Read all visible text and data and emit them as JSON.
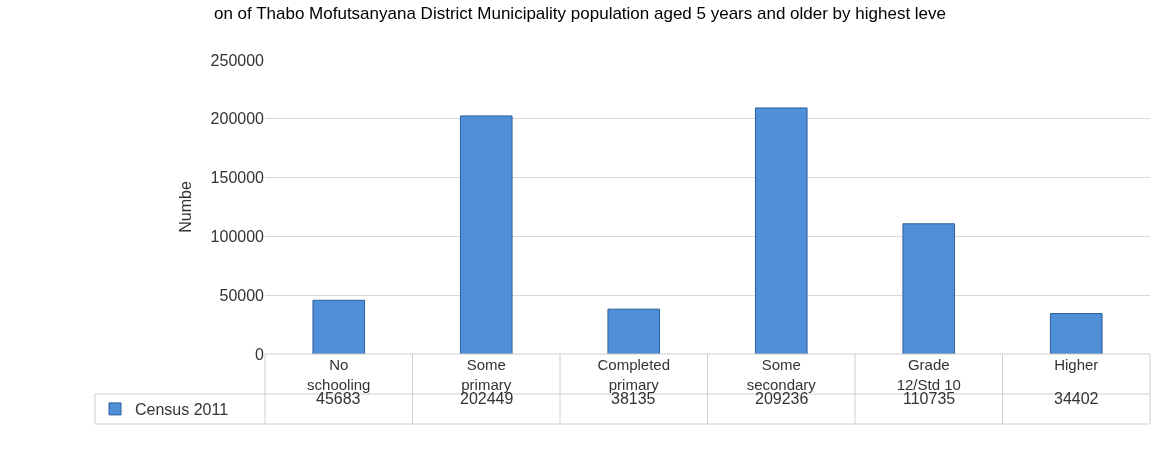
{
  "chart_data": {
    "type": "bar",
    "title": "on of Thabo Mofutsanyana District Municipality population aged 5 years and older by highest leve",
    "ylabel": "Numbe",
    "categories": [
      "No schooling",
      "Some primary",
      "Completed primary",
      "Some secondary",
      "Grade 12/Std 10",
      "Higher"
    ],
    "series": [
      {
        "name": "Census 2011",
        "color": "#4f8fd8",
        "values": [
          45683,
          202449,
          38135,
          209236,
          110735,
          34402
        ]
      }
    ],
    "ylim": [
      0,
      250000
    ],
    "yticks": [
      0,
      50000,
      100000,
      150000,
      200000,
      250000
    ],
    "grid": "y",
    "legend": "bottom left",
    "data_labels": true
  }
}
